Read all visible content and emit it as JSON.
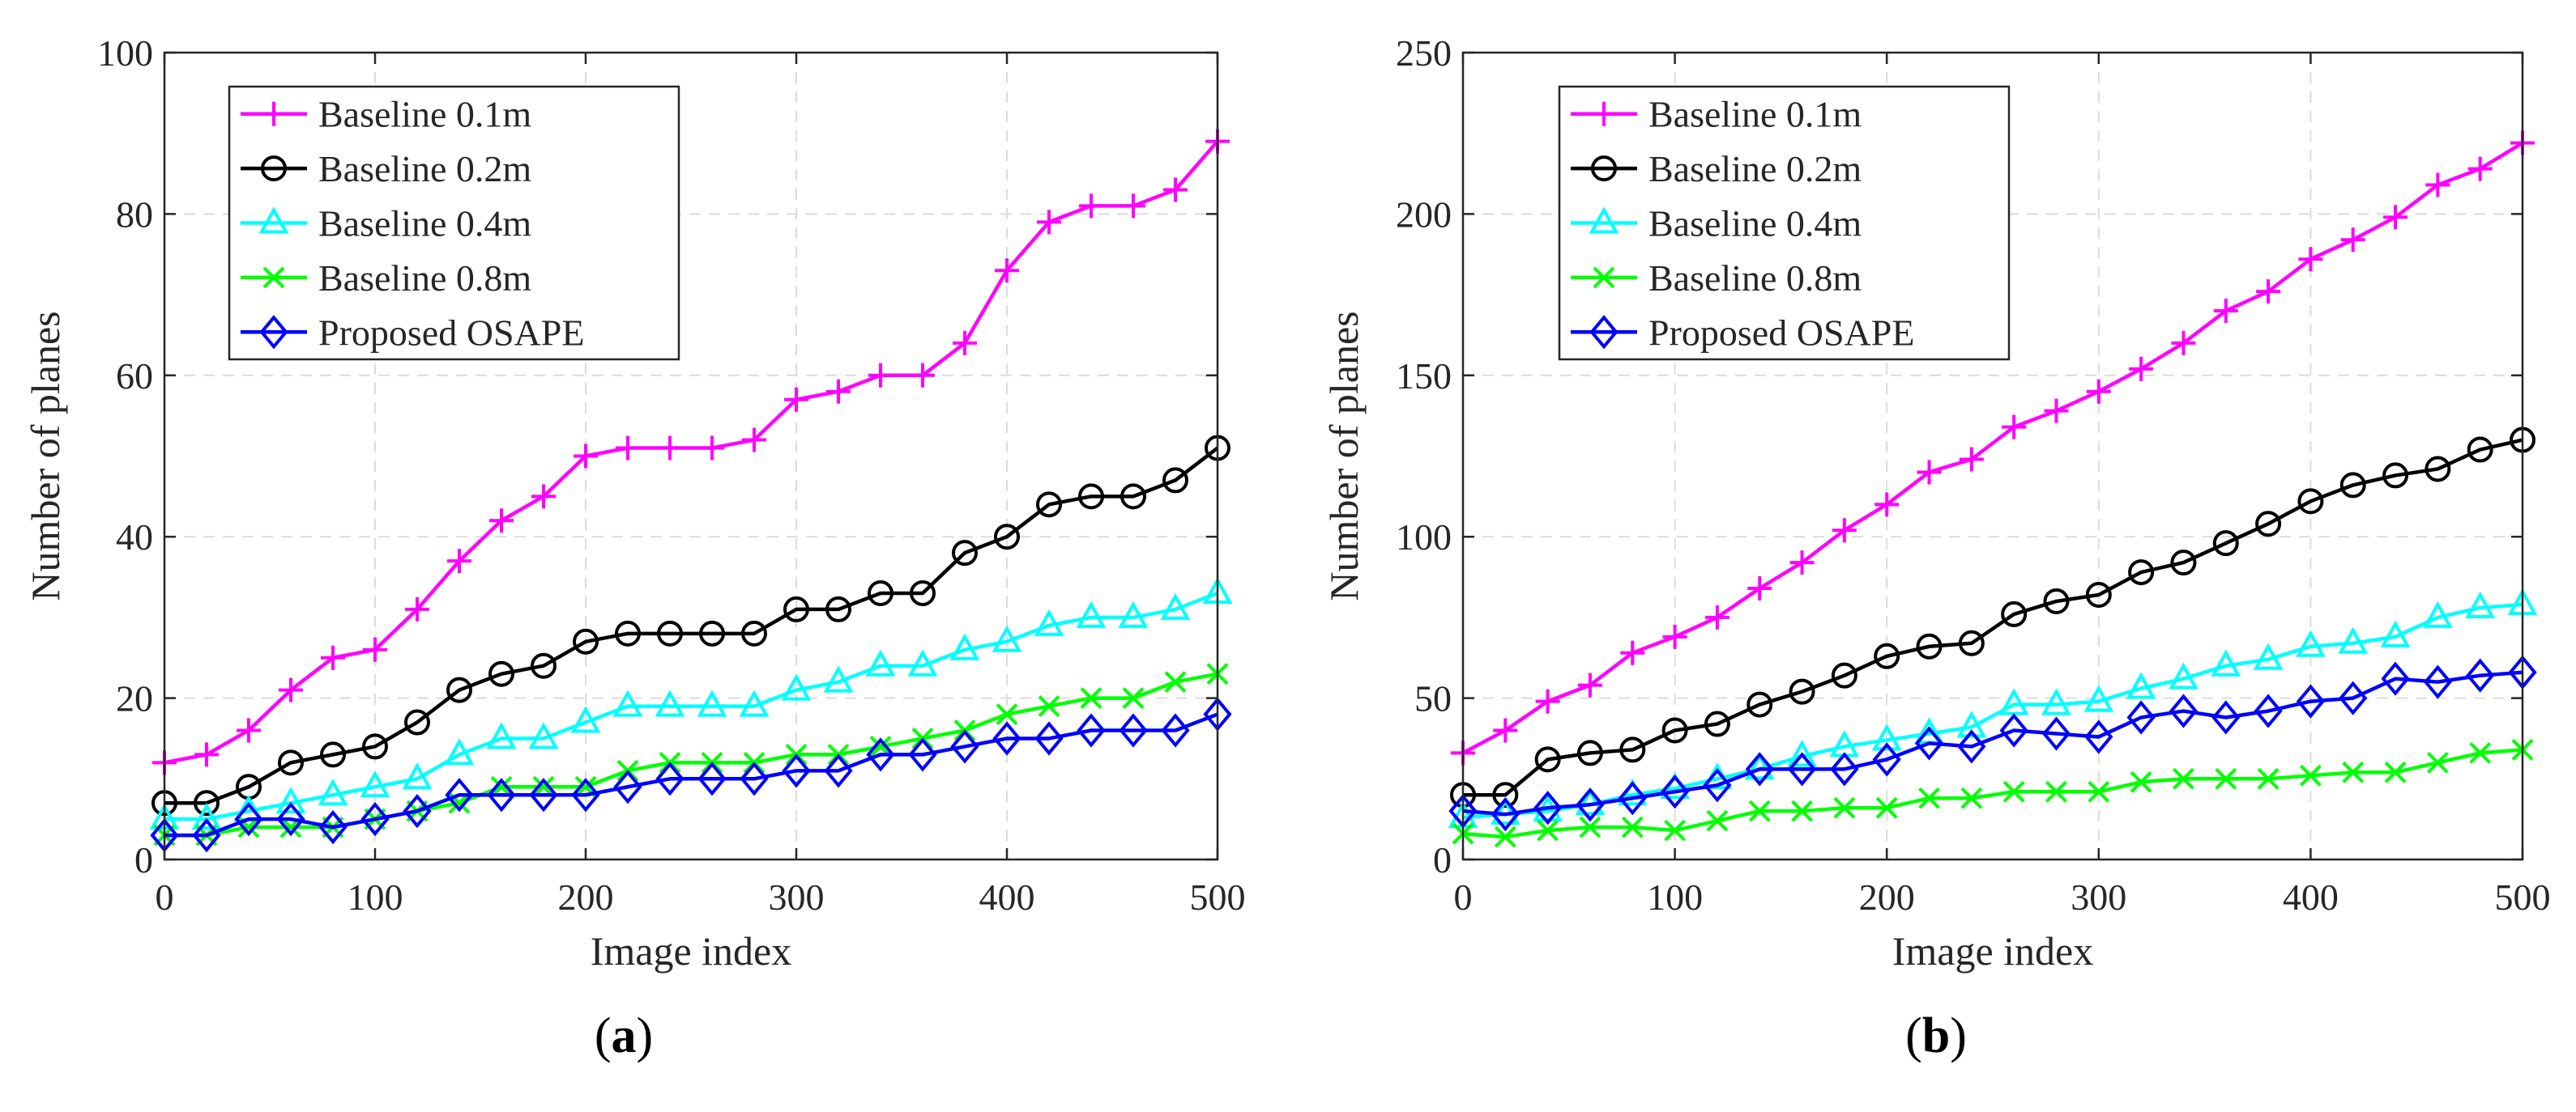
{
  "figure": {
    "captions": [
      "(a)",
      "(b)"
    ]
  },
  "chart_data": [
    {
      "type": "line",
      "panel_label": "a",
      "title": "",
      "xlabel": "Image index",
      "ylabel": "Number of planes",
      "xlim": [
        0,
        500
      ],
      "ylim": [
        0,
        100
      ],
      "x_ticks": [
        0,
        100,
        200,
        300,
        400,
        500
      ],
      "y_ticks": [
        0,
        20,
        40,
        60,
        80,
        100
      ],
      "grid": true,
      "legend_position": "top-left",
      "x": [
        0,
        20,
        40,
        60,
        80,
        100,
        120,
        140,
        160,
        180,
        200,
        220,
        240,
        260,
        280,
        300,
        320,
        340,
        360,
        380,
        400,
        420,
        440,
        460,
        480,
        500
      ],
      "series": [
        {
          "name": "Baseline 0.1m",
          "color": "#ff00ff",
          "marker": "plus",
          "values": [
            12,
            13,
            16,
            21,
            25,
            26,
            31,
            37,
            42,
            45,
            50,
            51,
            51,
            51,
            52,
            57,
            58,
            60,
            60,
            64,
            73,
            79,
            81,
            81,
            83,
            89
          ]
        },
        {
          "name": "Baseline 0.2m",
          "color": "#000000",
          "marker": "circle",
          "values": [
            7,
            7,
            9,
            12,
            13,
            14,
            17,
            21,
            23,
            24,
            27,
            28,
            28,
            28,
            28,
            31,
            31,
            33,
            33,
            38,
            40,
            44,
            45,
            45,
            47,
            51
          ]
        },
        {
          "name": "Baseline 0.4m",
          "color": "#00ffff",
          "marker": "triangle",
          "values": [
            5,
            5,
            6,
            7,
            8,
            9,
            10,
            13,
            15,
            15,
            17,
            19,
            19,
            19,
            19,
            21,
            22,
            24,
            24,
            26,
            27,
            29,
            30,
            30,
            31,
            33
          ]
        },
        {
          "name": "Baseline 0.8m",
          "color": "#00ff00",
          "marker": "x",
          "values": [
            3,
            3,
            4,
            4,
            4,
            5,
            6,
            7,
            9,
            9,
            9,
            11,
            12,
            12,
            12,
            13,
            13,
            14,
            15,
            16,
            18,
            19,
            20,
            20,
            22,
            23
          ]
        },
        {
          "name": "Proposed OSAPE",
          "color": "#0000ff",
          "marker": "diamond",
          "values": [
            3,
            3,
            5,
            5,
            4,
            5,
            6,
            8,
            8,
            8,
            8,
            9,
            10,
            10,
            10,
            11,
            11,
            13,
            13,
            14,
            15,
            15,
            16,
            16,
            16,
            18
          ]
        }
      ]
    },
    {
      "type": "line",
      "panel_label": "b",
      "title": "",
      "xlabel": "Image index",
      "ylabel": "Number of planes",
      "xlim": [
        0,
        500
      ],
      "ylim": [
        0,
        250
      ],
      "x_ticks": [
        0,
        100,
        200,
        300,
        400,
        500
      ],
      "y_ticks": [
        0,
        50,
        100,
        150,
        200,
        250
      ],
      "grid": true,
      "legend_position": "top-left",
      "x": [
        0,
        20,
        40,
        60,
        80,
        100,
        120,
        140,
        160,
        180,
        200,
        220,
        240,
        260,
        280,
        300,
        320,
        340,
        360,
        380,
        400,
        420,
        440,
        460,
        480,
        500
      ],
      "series": [
        {
          "name": "Baseline 0.1m",
          "color": "#ff00ff",
          "marker": "plus",
          "values": [
            33,
            40,
            49,
            54,
            64,
            69,
            75,
            84,
            92,
            102,
            110,
            120,
            124,
            134,
            139,
            145,
            152,
            160,
            170,
            176,
            186,
            192,
            199,
            209,
            214,
            222
          ]
        },
        {
          "name": "Baseline 0.2m",
          "color": "#000000",
          "marker": "circle",
          "values": [
            20,
            20,
            31,
            33,
            34,
            40,
            42,
            48,
            52,
            57,
            63,
            66,
            67,
            76,
            80,
            82,
            89,
            92,
            98,
            104,
            111,
            116,
            119,
            121,
            127,
            130
          ]
        },
        {
          "name": "Baseline 0.4m",
          "color": "#00ffff",
          "marker": "triangle",
          "values": [
            13,
            14,
            15,
            17,
            20,
            22,
            25,
            28,
            32,
            35,
            37,
            39,
            41,
            48,
            48,
            49,
            53,
            56,
            60,
            62,
            66,
            67,
            69,
            75,
            78,
            79
          ]
        },
        {
          "name": "Baseline 0.8m",
          "color": "#00ff00",
          "marker": "x",
          "values": [
            8,
            7,
            9,
            10,
            10,
            9,
            12,
            15,
            15,
            16,
            16,
            19,
            19,
            21,
            21,
            21,
            24,
            25,
            25,
            25,
            26,
            27,
            27,
            30,
            33,
            34
          ]
        },
        {
          "name": "Proposed OSAPE",
          "color": "#0000ff",
          "marker": "diamond",
          "values": [
            15,
            14,
            16,
            17,
            19,
            21,
            23,
            28,
            28,
            28,
            31,
            36,
            35,
            40,
            39,
            38,
            44,
            46,
            44,
            46,
            49,
            50,
            56,
            55,
            57,
            58
          ]
        }
      ]
    }
  ]
}
